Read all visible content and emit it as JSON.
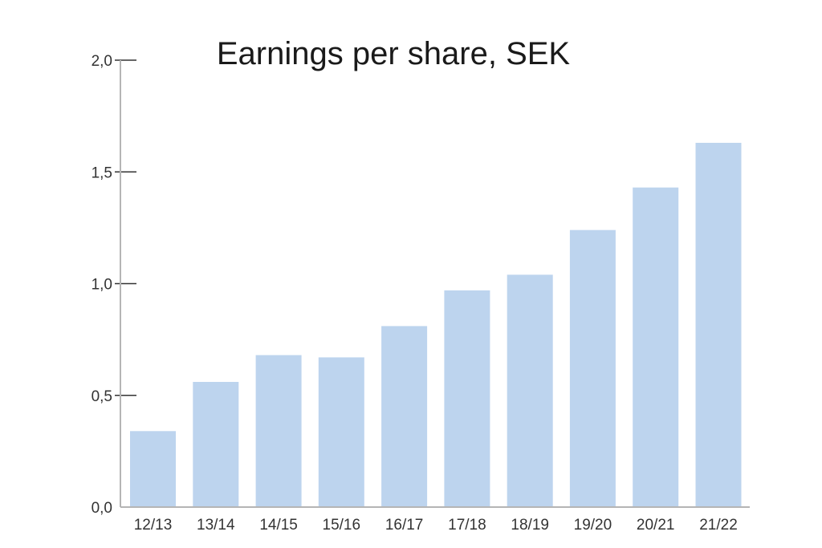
{
  "chart_data": {
    "type": "bar",
    "title": "Earnings per share, SEK",
    "categories": [
      "12/13",
      "13/14",
      "14/15",
      "15/16",
      "16/17",
      "17/18",
      "18/19",
      "19/20",
      "20/21",
      "21/22"
    ],
    "values": [
      0.34,
      0.56,
      0.68,
      0.67,
      0.81,
      0.97,
      1.04,
      1.24,
      1.43,
      1.63
    ],
    "ylim": [
      0,
      2.0
    ],
    "yticks": [
      0.0,
      0.5,
      1.0,
      1.5,
      2.0
    ],
    "ytick_labels": [
      "0,0",
      "0,5",
      "1,0",
      "1,5",
      "2,0"
    ],
    "xlabel": "",
    "ylabel": "",
    "grid": false,
    "bar_color": "#bdd4ee"
  }
}
